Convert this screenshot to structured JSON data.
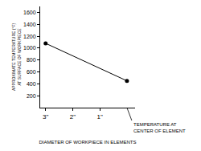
{
  "chart_data": {
    "type": "line",
    "x_label": "DIAMETER OF WORKPIECE IN ELEMENTS",
    "y_label": "APPROXIMATE TEMPERATURE (°F)\nAT SURFACE OF WORKPIECE",
    "annotation": "TEMPERATURE AT\nCENTER OF ELEMENT",
    "x": [
      3,
      0
    ],
    "values": [
      1080,
      450
    ],
    "color": "#000000",
    "marker": "circle",
    "line_style": "solid",
    "xlim": [
      3.2,
      -0.3
    ],
    "xticks": [
      {
        "value": 3,
        "label": "3\""
      },
      {
        "value": 2,
        "label": "2\""
      },
      {
        "value": 1,
        "label": "1\""
      }
    ],
    "ylim": [
      0,
      1700
    ],
    "yticks": [
      200,
      400,
      600,
      800,
      1000,
      1200,
      1400,
      1600
    ],
    "grid": false
  }
}
